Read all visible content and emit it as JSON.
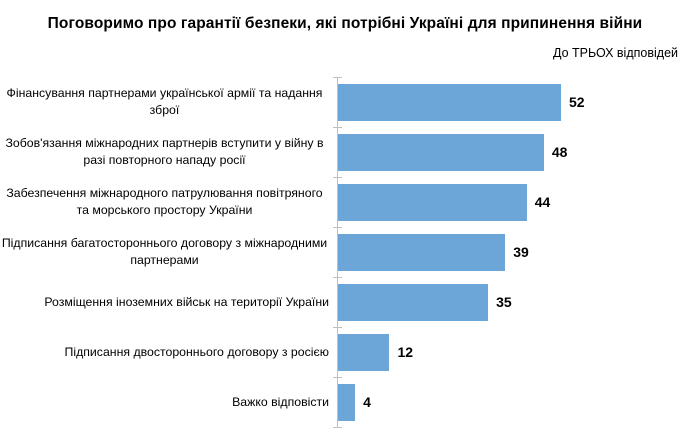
{
  "chart_data": {
    "type": "bar",
    "orientation": "horizontal",
    "title": "Поговоримо про гарантії безпеки, які потрібні Україні для припинення війни",
    "note": "До ТРЬОХ відповідей",
    "categories": [
      "Фінансування партнерами української армії та надання зброї",
      "Зобов'язання міжнародних партнерів вступити у війну в разі повторного нападу росії",
      "Забезпечення міжнародного патрулювання повітряного та морського простору України",
      "Підписання багатостороннього договору з міжнародними партнерами",
      "Розміщення іноземних військ на території України",
      "Підписання двостороннього договору з росією",
      "Важко відповісти"
    ],
    "values": [
      52,
      48,
      44,
      39,
      35,
      12,
      4
    ],
    "xlim": [
      0,
      52
    ],
    "grid": false,
    "legend": "none",
    "value_labels": "outside-end",
    "colors": {
      "bar": "#6CA6D9",
      "axis": "#BFBFBF",
      "text": "#000000"
    }
  }
}
